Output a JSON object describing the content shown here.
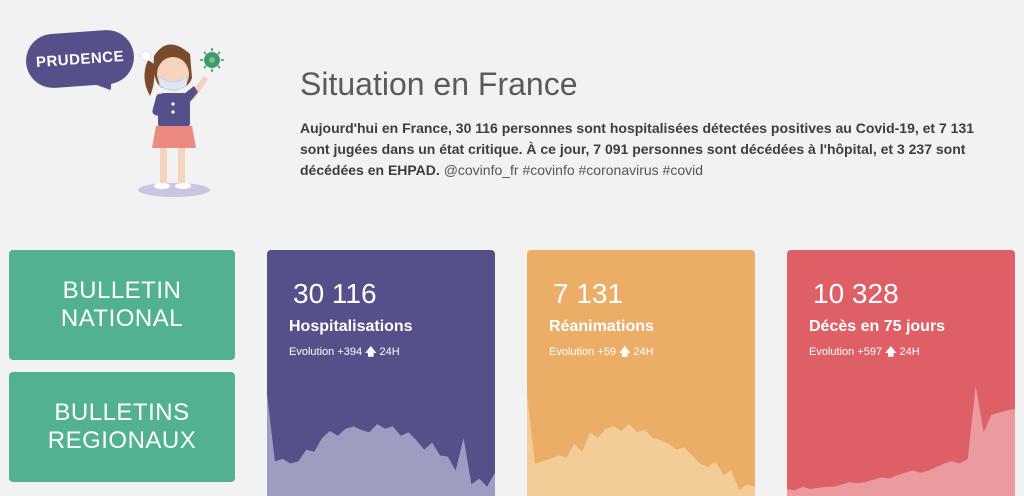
{
  "hero": {
    "badge": "PRUDENCE",
    "title": "Situation en France",
    "summary_bold": "Aujourd'hui en France, 30 116 personnes sont hospitalisées détectées positives au Covid-19, et 7 131 sont jugées dans un état critique. À ce jour, 7 091 personnes sont décédées à l'hôpital, et 3 237 sont décédées en EHPAD.",
    "summary_tags": "@covinfo_fr #covinfo #coronavirus #covid"
  },
  "nav": {
    "national": "BULLETIN\nNATIONAL",
    "regional": "BULLETINS\nREGIONAUX"
  },
  "cards": [
    {
      "number": "30 116",
      "label": "Hospitalisations",
      "evo_prefix": "Evolution",
      "evo_value": "+394",
      "evo_arrow": "🡅",
      "evo_unit": "24H",
      "color": "#55508a",
      "area_color": "#9e9cc0",
      "series": [
        0.88,
        0.3,
        0.32,
        0.28,
        0.3,
        0.4,
        0.38,
        0.5,
        0.56,
        0.52,
        0.58,
        0.6,
        0.57,
        0.55,
        0.62,
        0.58,
        0.6,
        0.52,
        0.55,
        0.48,
        0.4,
        0.46,
        0.35,
        0.34,
        0.22,
        0.5,
        0.1,
        0.15,
        0.08,
        0.2
      ]
    },
    {
      "number": "7 131",
      "label": "Réanimations",
      "evo_prefix": "Evolution",
      "evo_value": "+59",
      "evo_arrow": "🡅",
      "evo_unit": "24H",
      "color": "#ecad67",
      "area_color": "#f3cc98",
      "series": [
        0.88,
        0.28,
        0.3,
        0.32,
        0.35,
        0.33,
        0.45,
        0.38,
        0.55,
        0.5,
        0.58,
        0.6,
        0.56,
        0.62,
        0.55,
        0.57,
        0.5,
        0.48,
        0.45,
        0.4,
        0.42,
        0.35,
        0.28,
        0.25,
        0.3,
        0.18,
        0.22,
        0.05,
        0.1,
        0.08
      ]
    },
    {
      "number": "10 328",
      "label": "Décès en 75 jours",
      "evo_prefix": "Evolution",
      "evo_value": "+597",
      "evo_arrow": "🡅",
      "evo_unit": "24H",
      "color": "#df5f67",
      "area_color": "#eb9aa0",
      "series": [
        0.06,
        0.05,
        0.08,
        0.06,
        0.07,
        0.08,
        0.08,
        0.1,
        0.12,
        0.11,
        0.12,
        0.14,
        0.16,
        0.15,
        0.18,
        0.2,
        0.22,
        0.2,
        0.22,
        0.25,
        0.28,
        0.3,
        0.28,
        0.32,
        0.95,
        0.55,
        0.7,
        0.72,
        0.74,
        0.75
      ]
    }
  ]
}
